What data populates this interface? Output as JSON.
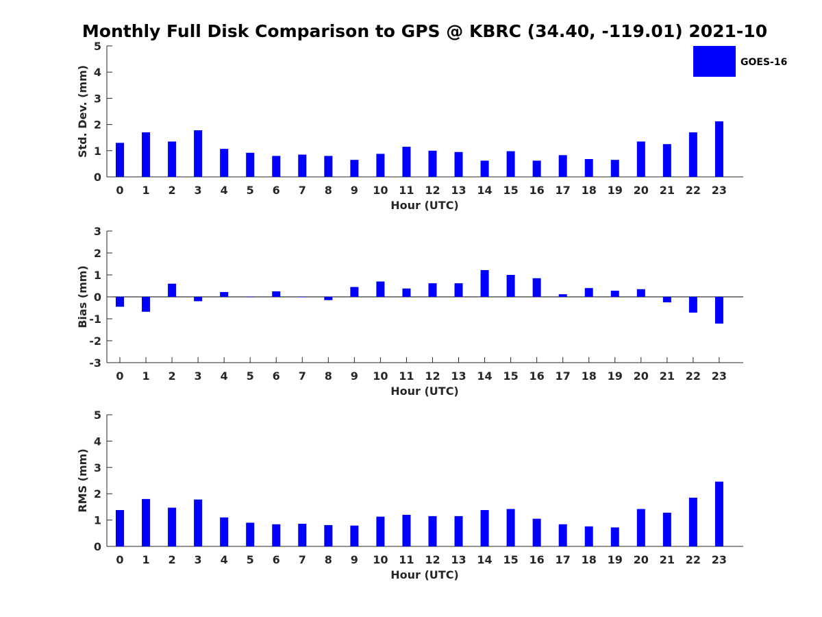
{
  "chart_data": {
    "title": "Monthly Full Disk Comparison to GPS @ KBRC (34.40, -119.01) 2021-10",
    "legend": {
      "label": "GOES-16",
      "color": "#0000ff",
      "position": "top-right"
    },
    "hours": [
      "0",
      "1",
      "2",
      "3",
      "4",
      "5",
      "6",
      "7",
      "8",
      "9",
      "10",
      "11",
      "12",
      "13",
      "14",
      "15",
      "16",
      "17",
      "18",
      "19",
      "20",
      "21",
      "22",
      "23"
    ],
    "subplots": [
      {
        "id": "std",
        "type": "bar",
        "ylabel": "Std. Dev. (mm)",
        "xlabel": "Hour (UTC)",
        "ylim": [
          0,
          5
        ],
        "yticks": [
          "0",
          "1",
          "2",
          "3",
          "4",
          "5"
        ],
        "series": [
          {
            "name": "GOES-16",
            "values": [
              1.3,
              1.7,
              1.35,
              1.78,
              1.07,
              0.92,
              0.8,
              0.85,
              0.8,
              0.65,
              0.88,
              1.15,
              1.0,
              0.95,
              0.62,
              0.98,
              0.62,
              0.83,
              0.68,
              0.65,
              1.35,
              1.25,
              1.7,
              2.12
            ]
          }
        ]
      },
      {
        "id": "bias",
        "type": "bar",
        "ylabel": "Bias (mm)",
        "xlabel": "Hour (UTC)",
        "ylim": [
          -3,
          3
        ],
        "yticks": [
          "-3",
          "-2",
          "-1",
          "0",
          "1",
          "2",
          "3"
        ],
        "series": [
          {
            "name": "GOES-16",
            "values": [
              -0.45,
              -0.68,
              0.6,
              -0.2,
              0.22,
              -0.02,
              0.25,
              -0.02,
              -0.15,
              0.45,
              0.7,
              0.38,
              0.62,
              0.62,
              1.22,
              1.0,
              0.85,
              0.12,
              0.4,
              0.28,
              0.35,
              -0.25,
              -0.72,
              -1.22
            ]
          }
        ]
      },
      {
        "id": "rms",
        "type": "bar",
        "ylabel": "RMS (mm)",
        "xlabel": "Hour (UTC)",
        "ylim": [
          0,
          5
        ],
        "yticks": [
          "0",
          "1",
          "2",
          "3",
          "4",
          "5"
        ],
        "series": [
          {
            "name": "GOES-16",
            "values": [
              1.38,
              1.8,
              1.47,
              1.78,
              1.1,
              0.9,
              0.84,
              0.86,
              0.81,
              0.79,
              1.13,
              1.2,
              1.15,
              1.15,
              1.38,
              1.42,
              1.05,
              0.84,
              0.76,
              0.72,
              1.42,
              1.28,
              1.85,
              2.46
            ]
          }
        ]
      }
    ]
  }
}
